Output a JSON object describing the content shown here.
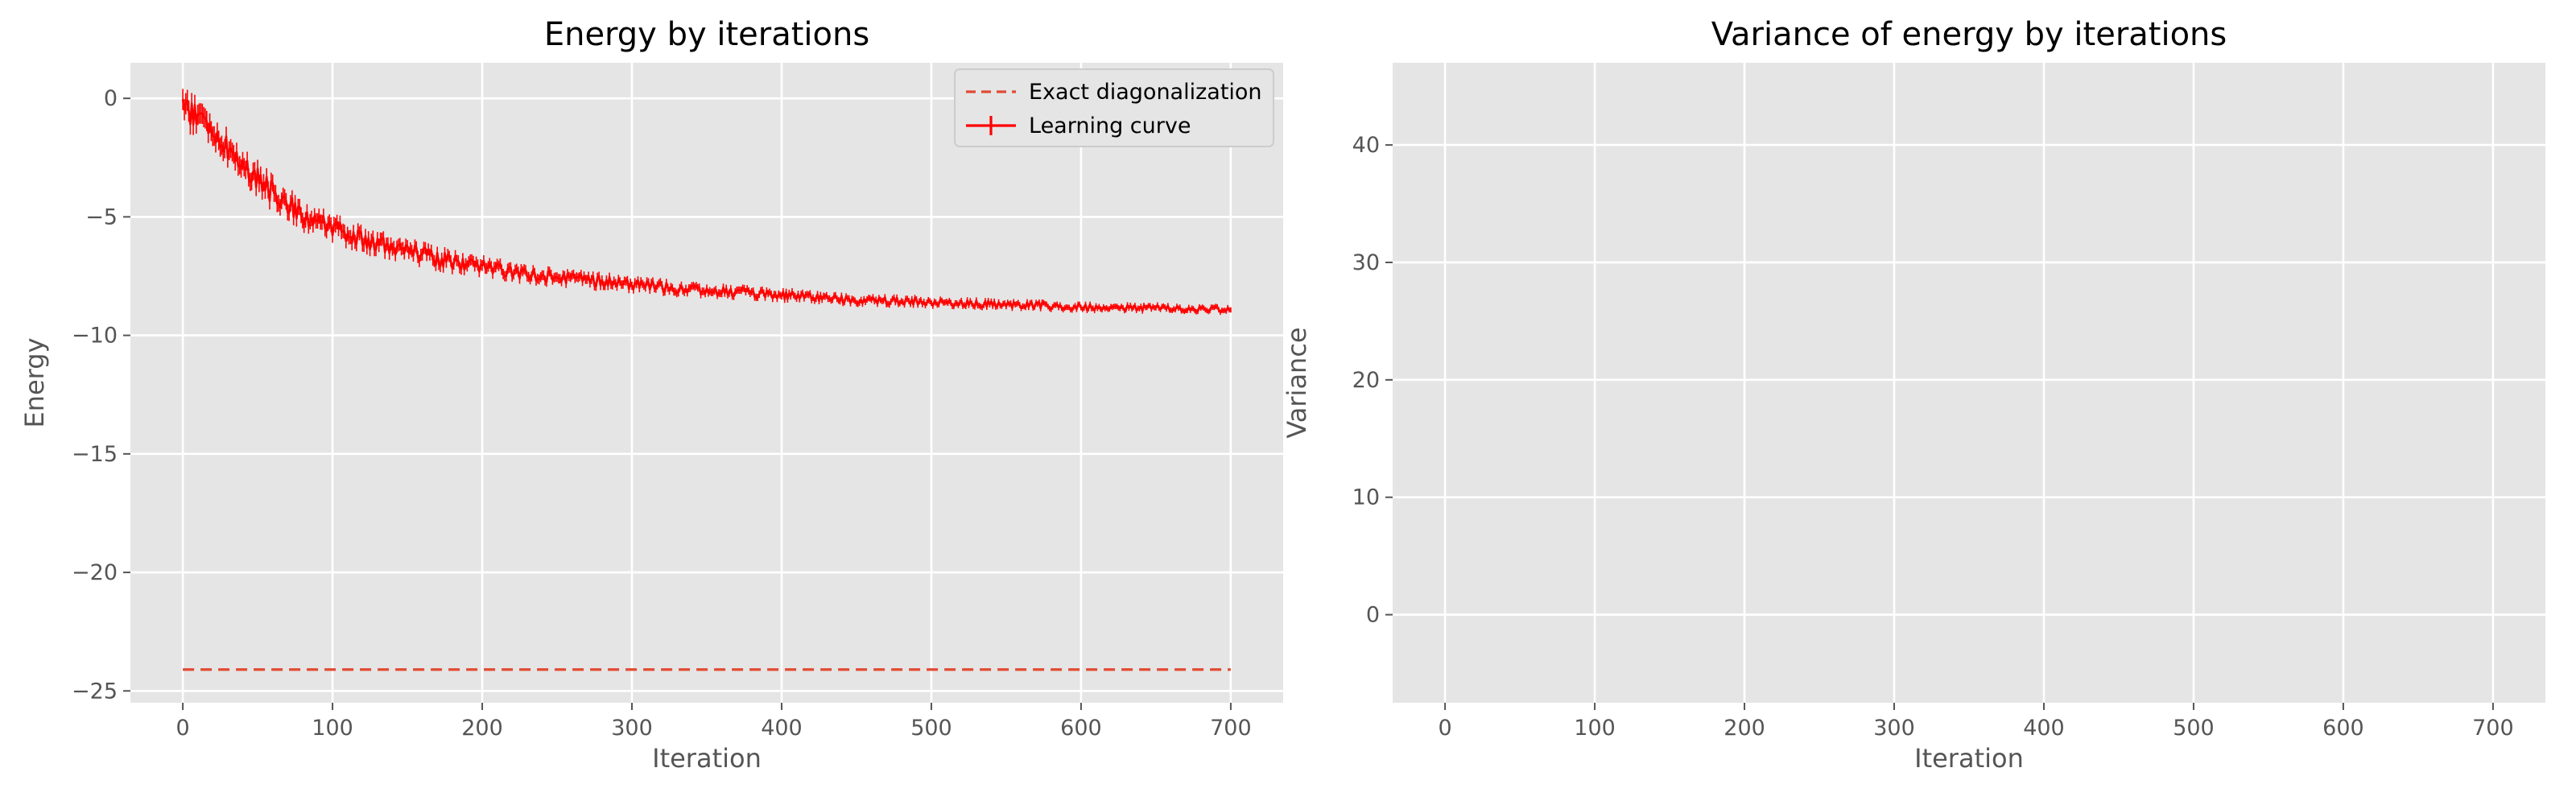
{
  "chart_data": [
    {
      "type": "line",
      "title": "Energy by iterations",
      "xlabel": "Iteration",
      "ylabel": "Energy",
      "xlim": [
        -35,
        735
      ],
      "ylim": [
        -25.5,
        1.5
      ],
      "xticks": [
        0,
        100,
        200,
        300,
        400,
        500,
        600,
        700
      ],
      "yticks": [
        0,
        -5,
        -10,
        -15,
        -20,
        -25
      ],
      "ytick_labels": [
        "0",
        "−5",
        "−10",
        "−15",
        "−20",
        "−25"
      ],
      "grid": true,
      "legend_position": "top-right",
      "color": "#ff0000",
      "series": [
        {
          "name": "Exact diagonalization",
          "style": "dashed",
          "color": "#e24a33",
          "x": [
            0,
            700
          ],
          "y": [
            -24.1,
            -24.1
          ]
        },
        {
          "name": "Learning curve",
          "style": "solid-errorbar",
          "color": "#ff0000",
          "x": [
            0,
            10,
            20,
            30,
            40,
            50,
            60,
            70,
            80,
            90,
            100,
            120,
            140,
            160,
            180,
            200,
            225,
            250,
            275,
            300,
            325,
            350,
            375,
            400,
            425,
            450,
            475,
            500,
            525,
            550,
            575,
            600,
            625,
            650,
            675,
            700
          ],
          "y": [
            -0.3,
            -0.8,
            -1.4,
            -2.1,
            -2.8,
            -3.4,
            -4.0,
            -4.5,
            -4.9,
            -5.2,
            -5.5,
            -6.0,
            -6.3,
            -6.6,
            -6.9,
            -7.1,
            -7.35,
            -7.55,
            -7.7,
            -7.85,
            -8.0,
            -8.1,
            -8.2,
            -8.3,
            -8.4,
            -8.5,
            -8.55,
            -8.6,
            -8.65,
            -8.7,
            -8.75,
            -8.8,
            -8.85,
            -8.85,
            -8.9,
            -8.9
          ]
        }
      ]
    },
    {
      "type": "line",
      "title": "Variance of energy by iterations",
      "xlabel": "Iteration",
      "ylabel": "Variance",
      "xlim": [
        -35,
        735
      ],
      "ylim": [
        -7.5,
        47
      ],
      "xticks": [
        0,
        100,
        200,
        300,
        400,
        500,
        600,
        700
      ],
      "yticks": [
        0,
        10,
        20,
        30,
        40
      ],
      "ytick_labels": [
        "0",
        "10",
        "20",
        "30",
        "40"
      ],
      "grid": true,
      "color": "#ff0000",
      "series": [
        {
          "x": [
            0,
            5,
            10,
            20,
            30,
            40,
            50,
            60,
            70,
            80,
            90,
            100,
            120,
            140,
            160,
            180,
            200,
            220,
            240,
            260,
            280,
            300,
            320,
            340,
            360,
            380,
            400,
            420,
            440,
            460,
            480,
            500,
            550,
            600,
            650,
            700
          ],
          "y": [
            36,
            38,
            34,
            31,
            28,
            26,
            24,
            22,
            20,
            18.5,
            17,
            15.5,
            13,
            11,
            10,
            9.3,
            8.3,
            7.4,
            6.7,
            6.1,
            5.6,
            5.0,
            4.6,
            4.3,
            4.0,
            3.6,
            3.3,
            3.0,
            2.7,
            2.4,
            2.2,
            1.9,
            1.4,
            1.0,
            0.7,
            0.6
          ]
        }
      ]
    }
  ]
}
